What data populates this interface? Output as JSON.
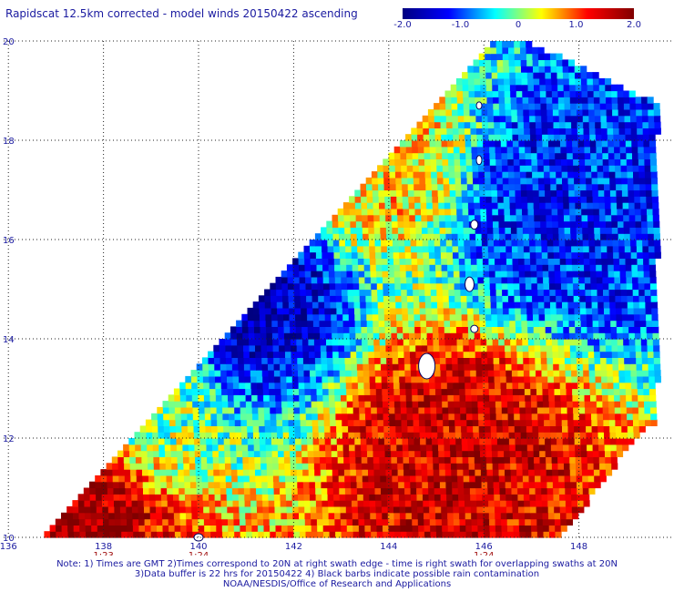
{
  "title": "Rapidscat 12.5km corrected - model winds 20150422 ascending",
  "colorbar": {
    "ticks": [
      "-2.0",
      "-1.0",
      "0",
      "1.0",
      "2.0"
    ],
    "stops": [
      "#000080",
      "#0000ff",
      "#00ffff",
      "#ffff00",
      "#ff0000",
      "#800000"
    ]
  },
  "chart_data": {
    "type": "heatmap",
    "xlabel": "",
    "ylabel": "",
    "x_ticks": [
      "136",
      "138",
      "140",
      "142",
      "144",
      "146",
      "148"
    ],
    "y_ticks": [
      "10",
      "12",
      "14",
      "16",
      "18",
      "20"
    ],
    "xlim": [
      135.9,
      150.0
    ],
    "ylim": [
      10,
      20
    ],
    "value_range": [
      -2.0,
      2.0
    ],
    "grid": true,
    "time_labels": [
      {
        "lon": 138,
        "text": "1:23"
      },
      {
        "lon": 140,
        "text": "1:24"
      },
      {
        "lon": 146,
        "text": "1:24"
      }
    ],
    "regions": [
      {
        "desc": "west",
        "lon": [
          137.5,
          139.5
        ],
        "lat": [
          12,
          14
        ],
        "value": 0.0
      },
      {
        "desc": "low west",
        "lon": [
          140.5,
          141.5
        ],
        "lat": [
          14.5,
          15.5
        ],
        "value": -1.6
      },
      {
        "desc": "high south-center",
        "lon": [
          143.5,
          147
        ],
        "lat": [
          10.5,
          13
        ],
        "value": 1.5
      },
      {
        "desc": "low north-east",
        "lon": [
          146,
          149
        ],
        "lat": [
          15,
          18
        ],
        "value": -1.2
      },
      {
        "desc": "high south-west corner",
        "lon": [
          136.5,
          137.5
        ],
        "lat": [
          10,
          10.8
        ],
        "value": 1.8
      },
      {
        "desc": "north center",
        "lon": [
          142,
          145
        ],
        "lat": [
          16,
          19
        ],
        "value": 0.5
      }
    ]
  },
  "notes": {
    "line1": "Note: 1) Times are GMT 2)Times correspond to 20N at right swath edge - time is right swath for overlapping swaths at 20N",
    "line2": "3)Data buffer is 22 hrs for 20150422 4) Black barbs indicate possible rain contamination",
    "line3": "NOAA/NESDIS/Office of Research and Applications"
  }
}
